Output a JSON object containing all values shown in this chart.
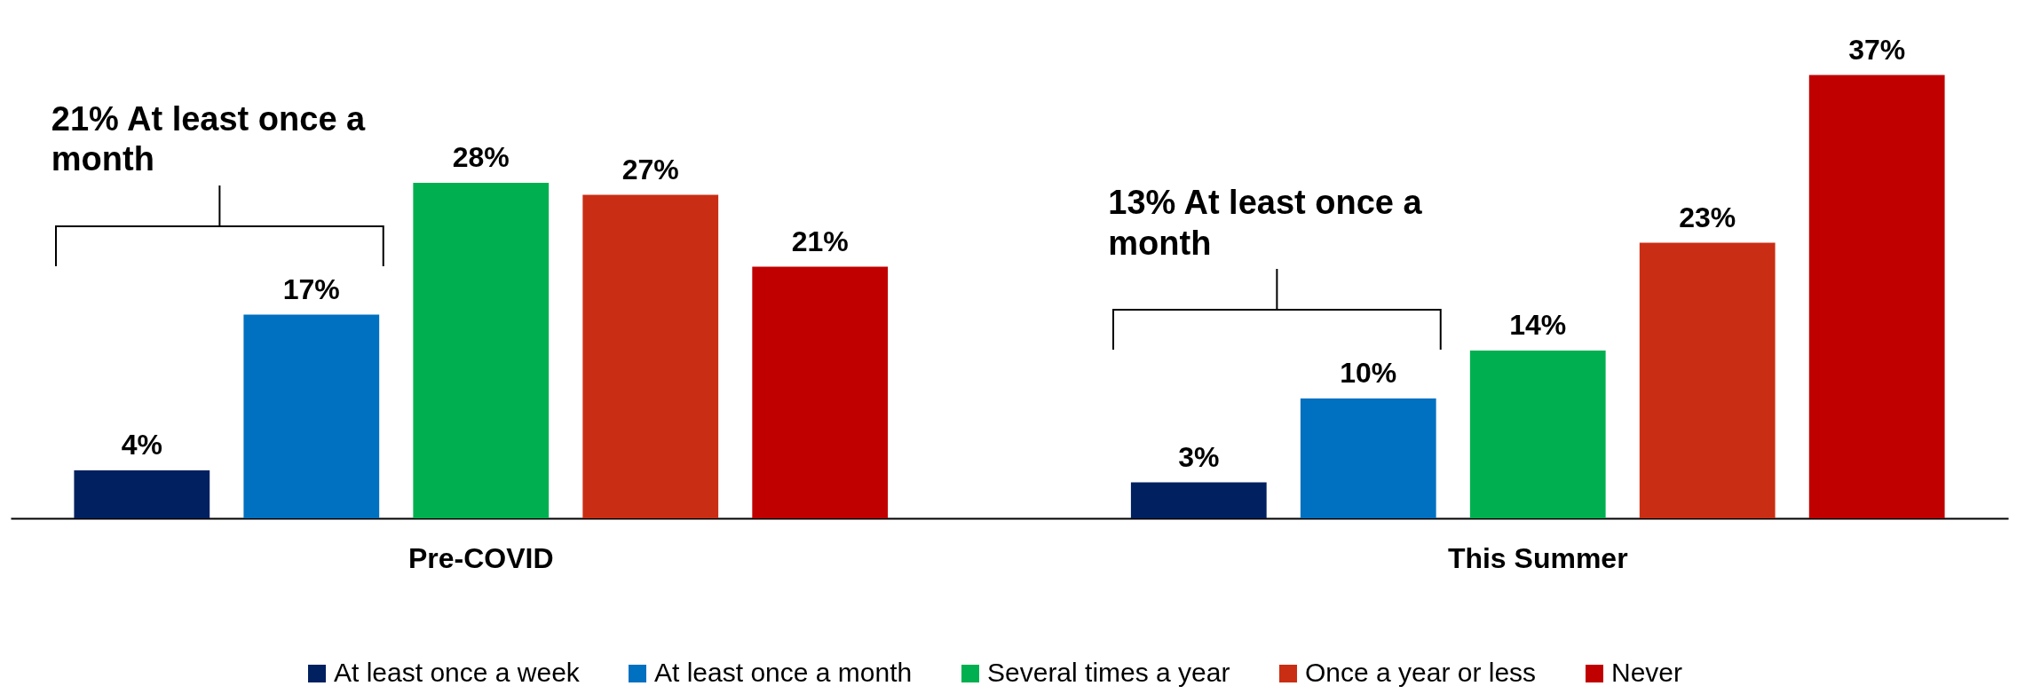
{
  "chart_data": {
    "type": "bar",
    "categories": [
      "Pre-COVID",
      "This Summer"
    ],
    "series": [
      {
        "name": "At least once a week",
        "color": "#002060",
        "values": [
          4,
          3
        ],
        "value_labels": [
          "4%",
          "3%"
        ]
      },
      {
        "name": "At least once a month",
        "color": "#0070c0",
        "values": [
          17,
          10
        ],
        "value_labels": [
          "17%",
          "10%"
        ]
      },
      {
        "name": "Several times a year",
        "color": "#00b050",
        "values": [
          28,
          14
        ],
        "value_labels": [
          "28%",
          "14%"
        ]
      },
      {
        "name": "Once a year or less",
        "color": "#c92e14",
        "values": [
          27,
          23
        ],
        "value_labels": [
          "27%",
          "23%"
        ]
      },
      {
        "name": "Never",
        "color": "#c00000",
        "values": [
          21,
          37
        ],
        "value_labels": [
          "21%",
          "37%"
        ]
      }
    ],
    "legend": "bottom",
    "tick_labels": "x",
    "annotations": [
      "21% At least once a month",
      "13% At least once a month"
    ]
  }
}
